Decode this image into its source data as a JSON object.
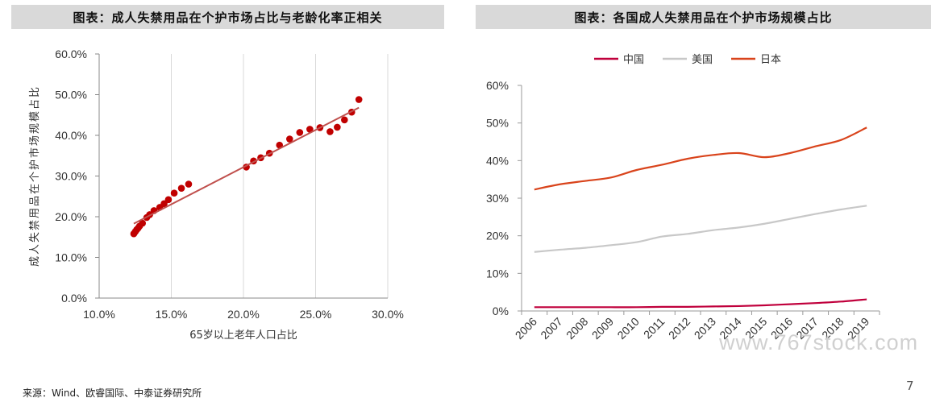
{
  "panels": {
    "left_title": "图表：成人失禁用品在个护市场占比与老龄化率正相关",
    "right_title": "图表：各国成人失禁用品在个护市场规模占比"
  },
  "chart_data": [
    {
      "type": "scatter",
      "title": "图表：成人失禁用品在个护市场占比与老龄化率正相关",
      "xlabel": "65岁以上老年人口占比",
      "ylabel": "成人失禁用品在个护市场规模占比",
      "xlim": [
        0.1,
        0.3
      ],
      "ylim": [
        0.0,
        0.6
      ],
      "x_ticks": [
        "10.0%",
        "15.0%",
        "20.0%",
        "25.0%",
        "30.0%"
      ],
      "y_ticks": [
        "0.0%",
        "10.0%",
        "20.0%",
        "30.0%",
        "40.0%",
        "50.0%",
        "60.0%"
      ],
      "grid": "vertical",
      "point_color": "#c00000",
      "trendline": {
        "color": "#c0504d",
        "x": [
          0.124,
          0.28
        ],
        "y": [
          0.183,
          0.468
        ]
      },
      "points": [
        {
          "x": 0.124,
          "y": 0.158
        },
        {
          "x": 0.125,
          "y": 0.163
        },
        {
          "x": 0.126,
          "y": 0.168
        },
        {
          "x": 0.127,
          "y": 0.172
        },
        {
          "x": 0.128,
          "y": 0.177
        },
        {
          "x": 0.13,
          "y": 0.184
        },
        {
          "x": 0.133,
          "y": 0.198
        },
        {
          "x": 0.135,
          "y": 0.205
        },
        {
          "x": 0.138,
          "y": 0.215
        },
        {
          "x": 0.142,
          "y": 0.223
        },
        {
          "x": 0.145,
          "y": 0.232
        },
        {
          "x": 0.148,
          "y": 0.242
        },
        {
          "x": 0.152,
          "y": 0.258
        },
        {
          "x": 0.157,
          "y": 0.27
        },
        {
          "x": 0.162,
          "y": 0.28
        },
        {
          "x": 0.202,
          "y": 0.322
        },
        {
          "x": 0.207,
          "y": 0.337
        },
        {
          "x": 0.212,
          "y": 0.345
        },
        {
          "x": 0.218,
          "y": 0.356
        },
        {
          "x": 0.225,
          "y": 0.376
        },
        {
          "x": 0.232,
          "y": 0.391
        },
        {
          "x": 0.239,
          "y": 0.407
        },
        {
          "x": 0.246,
          "y": 0.415
        },
        {
          "x": 0.253,
          "y": 0.419
        },
        {
          "x": 0.26,
          "y": 0.409
        },
        {
          "x": 0.265,
          "y": 0.42
        },
        {
          "x": 0.27,
          "y": 0.438
        },
        {
          "x": 0.275,
          "y": 0.457
        },
        {
          "x": 0.28,
          "y": 0.488
        }
      ]
    },
    {
      "type": "line",
      "title": "图表：各国成人失禁用品在个护市场规模占比",
      "x": [
        "2006",
        "2007",
        "2008",
        "2009",
        "2010",
        "2011",
        "2012",
        "2013",
        "2014",
        "2015",
        "2016",
        "2017",
        "2018",
        "2019"
      ],
      "ylim": [
        0,
        0.6
      ],
      "y_ticks": [
        "0%",
        "10%",
        "20%",
        "30%",
        "40%",
        "50%",
        "60%"
      ],
      "legend_position": "top",
      "series": [
        {
          "name": "中国",
          "color": "#c0003c",
          "values": [
            0.01,
            0.01,
            0.01,
            0.01,
            0.01,
            0.011,
            0.011,
            0.012,
            0.013,
            0.015,
            0.018,
            0.021,
            0.025,
            0.031
          ]
        },
        {
          "name": "美国",
          "color": "#c8c8c8",
          "values": [
            0.157,
            0.163,
            0.168,
            0.175,
            0.183,
            0.198,
            0.205,
            0.215,
            0.222,
            0.232,
            0.245,
            0.258,
            0.27,
            0.28
          ]
        },
        {
          "name": "日本",
          "color": "#d9441c",
          "values": [
            0.323,
            0.337,
            0.346,
            0.355,
            0.375,
            0.389,
            0.405,
            0.415,
            0.42,
            0.409,
            0.42,
            0.438,
            0.455,
            0.488
          ]
        }
      ]
    }
  ],
  "footer": {
    "source": "来源：Wind、欧睿国际、中泰证券研究所",
    "page_number": "7",
    "watermark": "www.767stock.com"
  }
}
